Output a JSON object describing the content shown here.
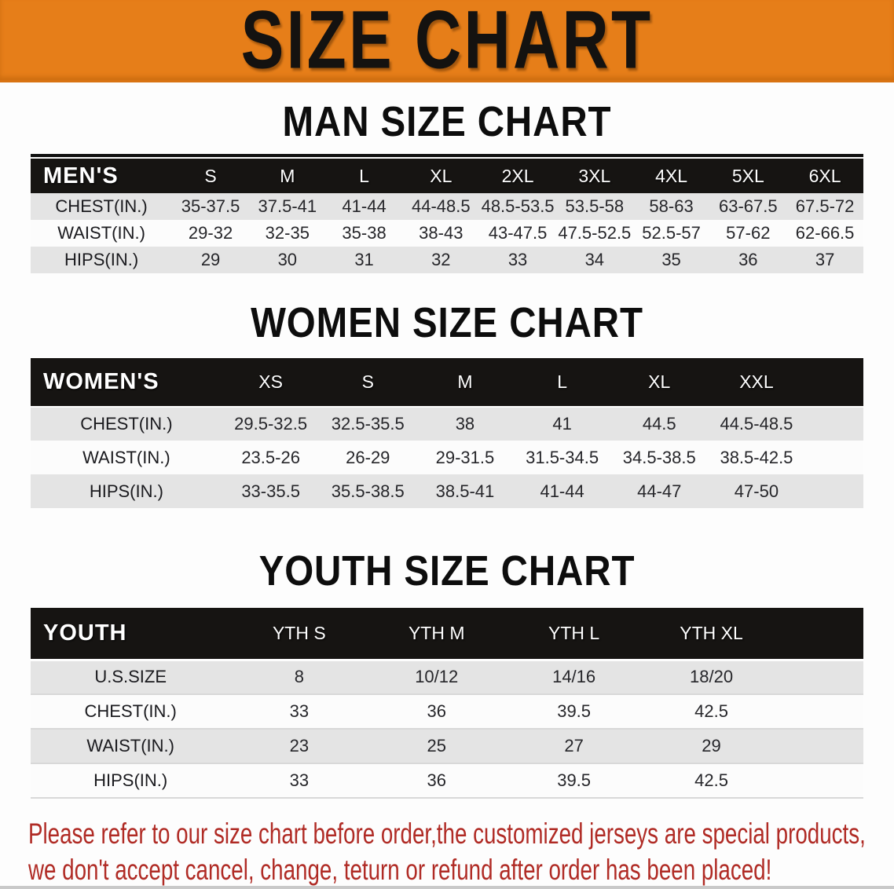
{
  "colors": {
    "banner-bg": "#E67E19",
    "band-color": "#161412",
    "row-gray": "#E4E4E4",
    "disclaimer-color": "#B02B25"
  },
  "banner": {
    "title": "SIZE CHART"
  },
  "sections": [
    {
      "heading": "MAN SIZE CHART",
      "table": {
        "label": "MEN'S",
        "columns": [
          "S",
          "M",
          "L",
          "XL",
          "2XL",
          "3XL",
          "4XL",
          "5XL",
          "6XL"
        ],
        "rows": [
          {
            "label": "CHEST(IN.)",
            "values": [
              "35-37.5",
              "37.5-41",
              "41-44",
              "44-48.5",
              "48.5-53.5",
              "53.5-58",
              "58-63",
              "63-67.5",
              "67.5-72"
            ]
          },
          {
            "label": "WAIST(IN.)",
            "values": [
              "29-32",
              "32-35",
              "35-38",
              "38-43",
              "43-47.5",
              "47.5-52.5",
              "52.5-57",
              "57-62",
              "62-66.5"
            ]
          },
          {
            "label": "HIPS(IN.)",
            "values": [
              "29",
              "30",
              "31",
              "32",
              "33",
              "34",
              "35",
              "36",
              "37"
            ]
          }
        ]
      }
    },
    {
      "heading": "WOMEN SIZE CHART",
      "table": {
        "label": "WOMEN'S",
        "columns": [
          "XS",
          "S",
          "M",
          "L",
          "XL",
          "XXL"
        ],
        "rows": [
          {
            "label": "CHEST(IN.)",
            "values": [
              "29.5-32.5",
              "32.5-35.5",
              "38",
              "41",
              "44.5",
              "44.5-48.5"
            ]
          },
          {
            "label": "WAIST(IN.)",
            "values": [
              "23.5-26",
              "26-29",
              "29-31.5",
              "31.5-34.5",
              "34.5-38.5",
              "38.5-42.5"
            ]
          },
          {
            "label": "HIPS(IN.)",
            "values": [
              "33-35.5",
              "35.5-38.5",
              "38.5-41",
              "41-44",
              "44-47",
              "47-50"
            ]
          }
        ]
      }
    },
    {
      "heading": "YOUTH SIZE CHART",
      "table": {
        "label": "YOUTH",
        "columns": [
          "YTH S",
          "YTH M",
          "YTH L",
          "YTH XL"
        ],
        "rows": [
          {
            "label": "U.S.SIZE",
            "values": [
              "8",
              "10/12",
              "14/16",
              "18/20"
            ]
          },
          {
            "label": "CHEST(IN.)",
            "values": [
              "33",
              "36",
              "39.5",
              "42.5"
            ]
          },
          {
            "label": "WAIST(IN.)",
            "values": [
              "23",
              "25",
              "27",
              "29"
            ]
          },
          {
            "label": "HIPS(IN.)",
            "values": [
              "33",
              "36",
              "39.5",
              "42.5"
            ]
          }
        ]
      }
    }
  ],
  "disclaimer": {
    "line1": "Please refer to our size chart before order,the customized jerseys are special products,",
    "line2": "we don't accept cancel, change, teturn or refund after order has been placed!"
  }
}
